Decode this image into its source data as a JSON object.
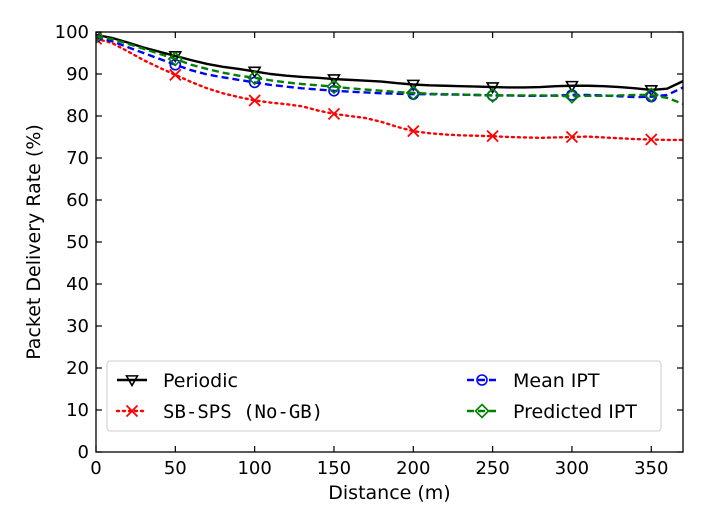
{
  "chart_data": {
    "type": "line",
    "title": "",
    "xlabel": "Distance (m)",
    "ylabel": "Packet Delivery Rate (%)",
    "xlim": [
      0,
      370
    ],
    "ylim": [
      0,
      100
    ],
    "xticks": [
      0,
      50,
      100,
      150,
      200,
      250,
      300,
      350
    ],
    "yticks": [
      0,
      10,
      20,
      30,
      40,
      50,
      60,
      70,
      80,
      90,
      100
    ],
    "grid": false,
    "legend_position": "lower-center",
    "series": [
      {
        "name": "Periodic",
        "color": "#000000",
        "style": "solid",
        "marker": "triangle-down",
        "x": [
          0,
          10,
          20,
          30,
          40,
          50,
          60,
          70,
          80,
          90,
          100,
          110,
          120,
          130,
          140,
          150,
          160,
          170,
          180,
          190,
          200,
          210,
          220,
          230,
          240,
          250,
          260,
          270,
          280,
          290,
          300,
          310,
          320,
          330,
          340,
          350,
          360,
          370
        ],
        "y": [
          99.3,
          98.6,
          97.5,
          96.3,
          95.3,
          94.3,
          93.3,
          92.4,
          91.7,
          91.2,
          90.6,
          90.0,
          89.6,
          89.3,
          89.1,
          88.8,
          88.6,
          88.4,
          88.2,
          87.8,
          87.5,
          87.3,
          87.2,
          87.1,
          87.0,
          86.9,
          86.8,
          86.8,
          86.9,
          87.1,
          87.2,
          87.2,
          87.1,
          86.9,
          86.6,
          86.2,
          86.5,
          88.3
        ],
        "marker_x": [
          0,
          50,
          100,
          150,
          200,
          250,
          300,
          350
        ]
      },
      {
        "name": "SB-SPS (No-GB)",
        "color": "#ff0000",
        "style": "dotted",
        "marker": "x",
        "x": [
          0,
          10,
          20,
          30,
          40,
          50,
          60,
          70,
          80,
          90,
          100,
          110,
          120,
          130,
          140,
          150,
          160,
          170,
          180,
          190,
          200,
          210,
          220,
          230,
          240,
          250,
          260,
          270,
          280,
          290,
          300,
          310,
          320,
          330,
          340,
          350,
          360,
          370
        ],
        "y": [
          98.4,
          97.4,
          95.4,
          93.3,
          91.5,
          89.8,
          88.1,
          86.6,
          85.4,
          84.5,
          83.7,
          83.2,
          82.8,
          82.3,
          81.3,
          80.5,
          80.0,
          79.5,
          78.6,
          77.4,
          76.4,
          75.9,
          75.6,
          75.4,
          75.3,
          75.2,
          75.0,
          74.9,
          74.8,
          74.9,
          75.0,
          75.1,
          74.9,
          74.7,
          74.5,
          74.4,
          74.3,
          74.3
        ],
        "marker_x": [
          0,
          50,
          100,
          150,
          200,
          250,
          300,
          350
        ]
      },
      {
        "name": "Mean IPT",
        "color": "#0000ff",
        "style": "dashed",
        "marker": "circle",
        "x": [
          0,
          10,
          20,
          30,
          40,
          50,
          60,
          70,
          80,
          90,
          100,
          110,
          120,
          130,
          140,
          150,
          160,
          170,
          180,
          190,
          200,
          210,
          220,
          230,
          240,
          250,
          260,
          270,
          280,
          290,
          300,
          310,
          320,
          330,
          340,
          350,
          360,
          370
        ],
        "y": [
          98.8,
          97.8,
          96.4,
          95.0,
          93.6,
          92.2,
          90.9,
          89.9,
          89.2,
          88.6,
          88.0,
          87.4,
          87.0,
          86.6,
          86.3,
          86.0,
          85.8,
          85.6,
          85.4,
          85.3,
          85.2,
          85.2,
          85.1,
          85.1,
          85.0,
          84.9,
          84.9,
          84.8,
          84.8,
          84.9,
          85.0,
          85.0,
          84.9,
          84.7,
          84.5,
          84.6,
          85.0,
          86.8
        ],
        "marker_x": [
          0,
          50,
          100,
          150,
          200,
          250,
          300,
          350
        ]
      },
      {
        "name": "Predicted IPT",
        "color": "#008000",
        "style": "dashed",
        "marker": "diamond",
        "x": [
          0,
          10,
          20,
          30,
          40,
          50,
          60,
          70,
          80,
          90,
          100,
          110,
          120,
          130,
          140,
          150,
          160,
          170,
          180,
          190,
          200,
          210,
          220,
          230,
          240,
          250,
          260,
          270,
          280,
          290,
          300,
          310,
          320,
          330,
          340,
          350,
          360,
          370
        ],
        "y": [
          99.0,
          98.3,
          97.2,
          96.0,
          94.8,
          93.6,
          92.2,
          91.2,
          90.3,
          89.6,
          89.1,
          88.5,
          88.0,
          87.6,
          87.3,
          87.0,
          86.6,
          86.3,
          86.0,
          85.7,
          85.5,
          85.3,
          85.2,
          85.1,
          85.0,
          84.9,
          84.9,
          84.9,
          84.9,
          84.8,
          84.7,
          84.8,
          84.8,
          84.9,
          85.0,
          85.0,
          84.3,
          82.9
        ],
        "marker_x": [
          0,
          50,
          100,
          150,
          200,
          250,
          300,
          350
        ]
      }
    ]
  }
}
